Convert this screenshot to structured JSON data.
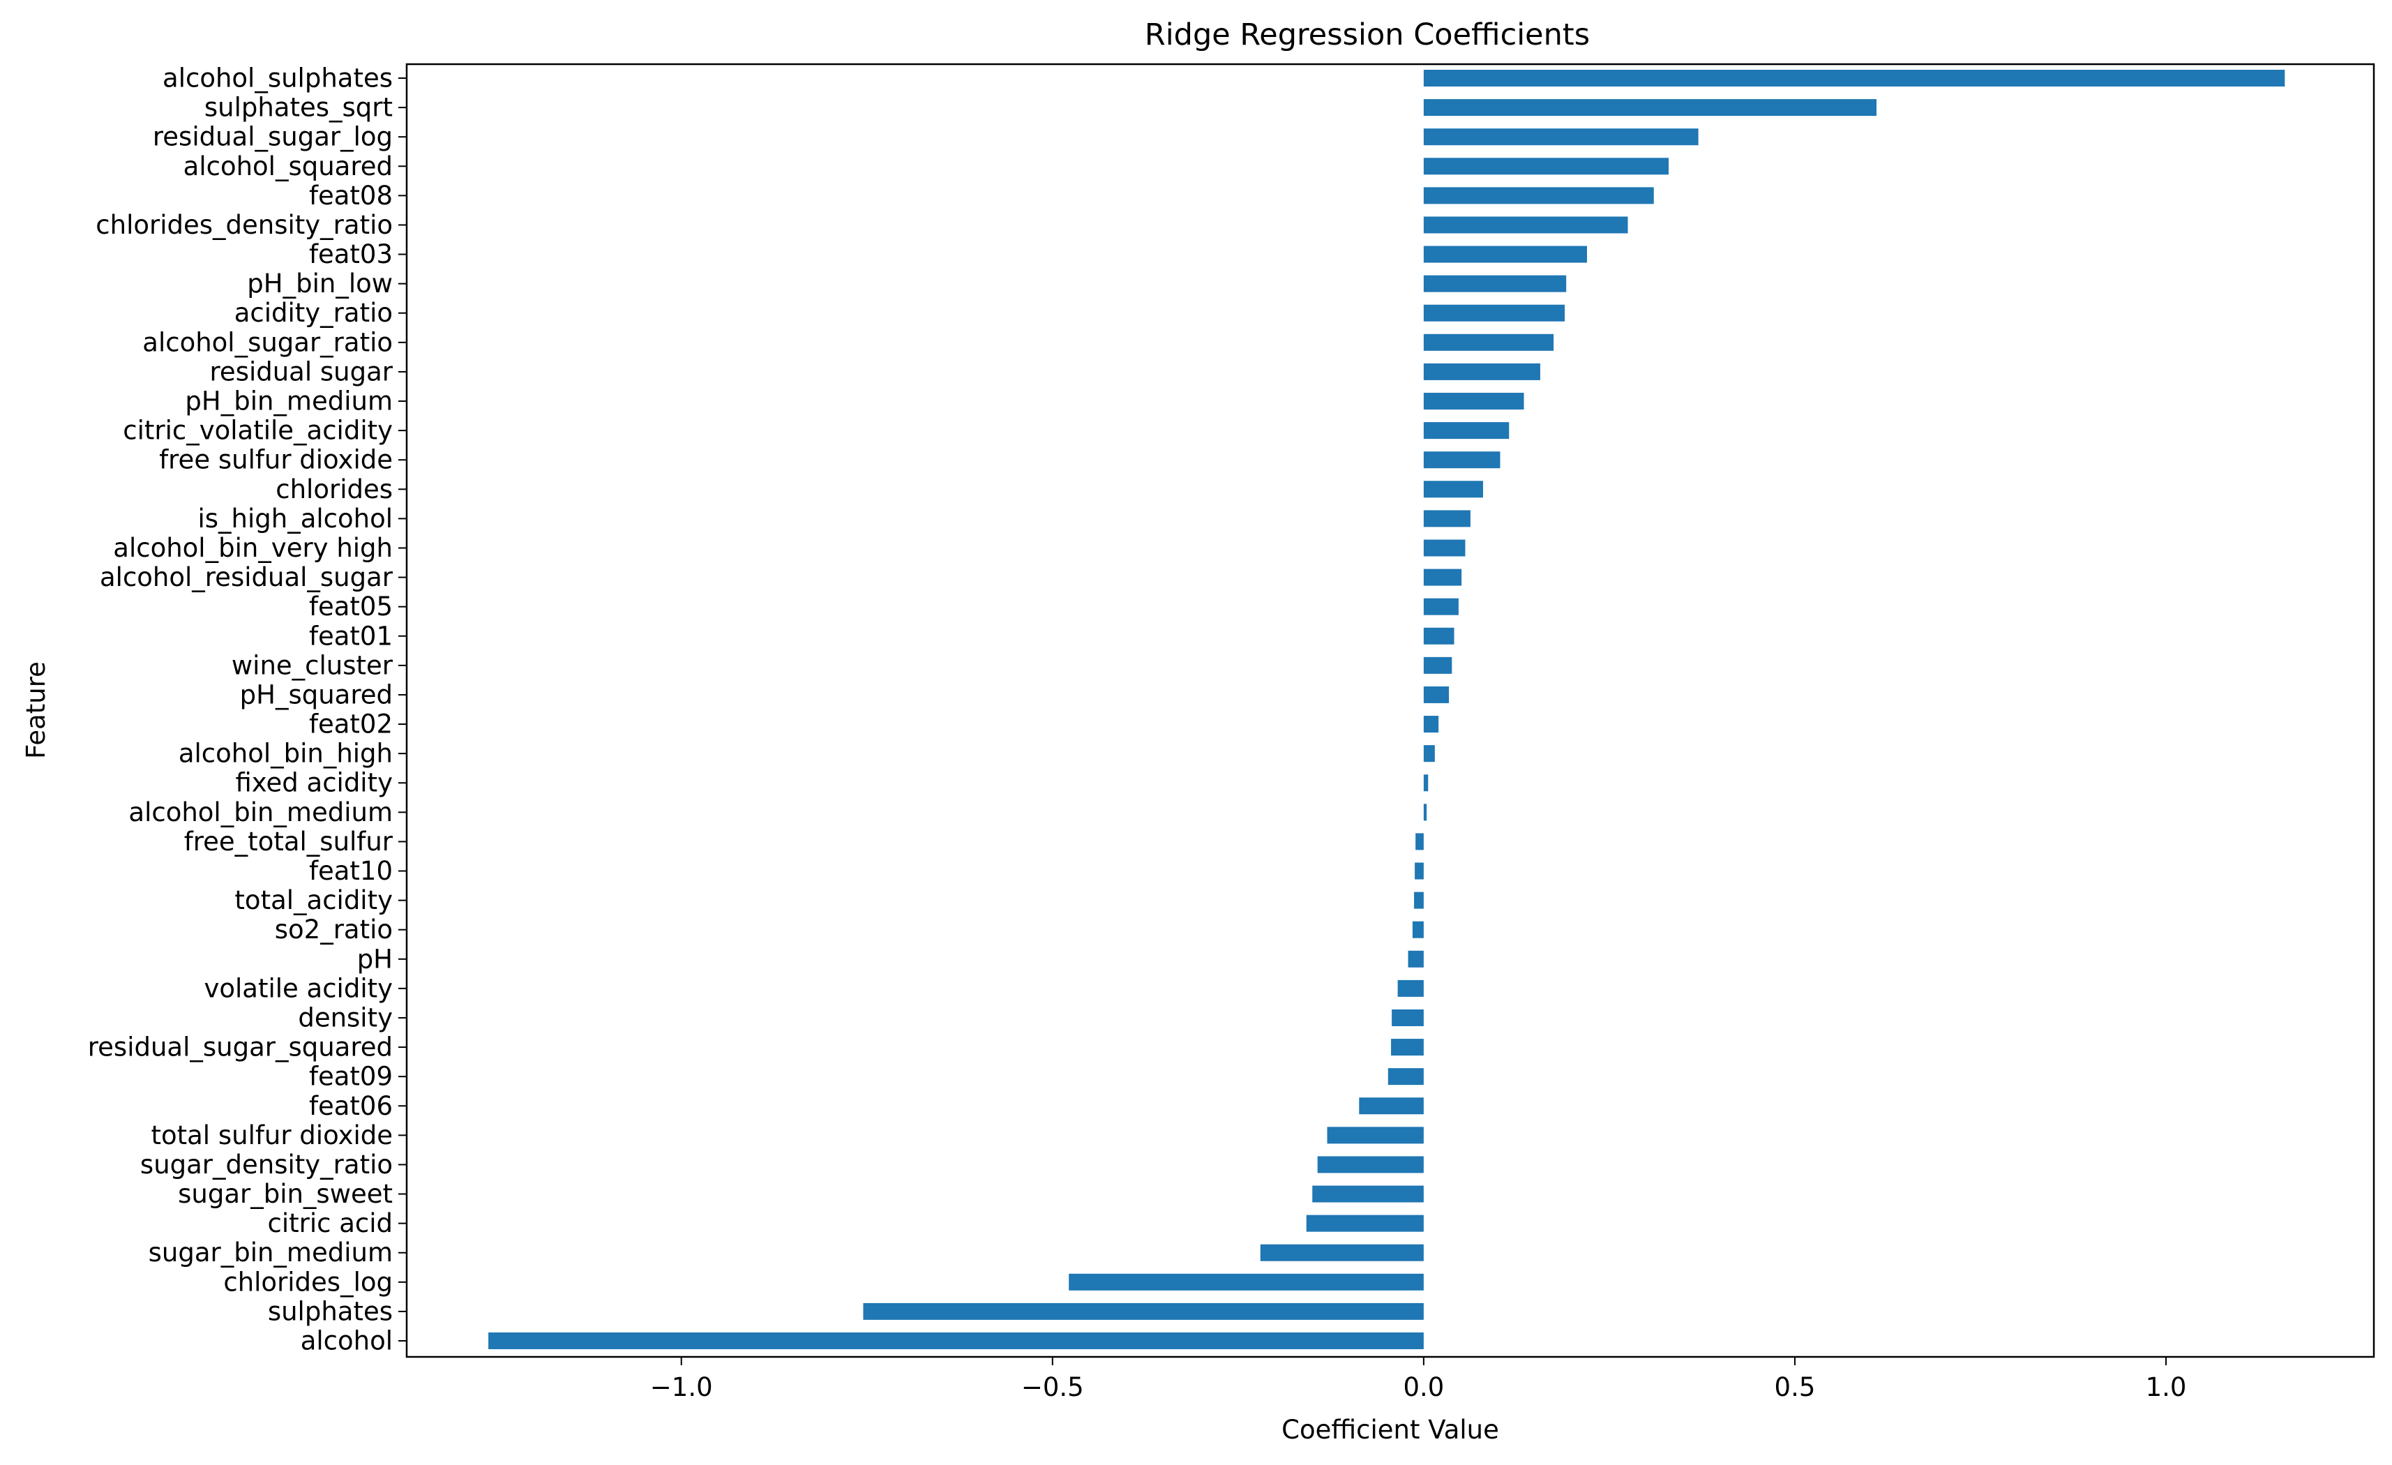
{
  "chart_data": {
    "type": "bar",
    "orientation": "horizontal",
    "title": "Ridge Regression Coefficients",
    "xlabel": "Coefficient Value",
    "ylabel": "Feature",
    "xlim": [
      -1.37,
      1.28
    ],
    "xticks": [
      -1.0,
      -0.5,
      0.0,
      0.5,
      1.0
    ],
    "xtick_labels": [
      "−1.0",
      "−0.5",
      "0.0",
      "0.5",
      "1.0"
    ],
    "bar_color": "#1f77b4",
    "grid": false,
    "categories": [
      "alcohol_sulphates",
      "sulphates_sqrt",
      "residual_sugar_log",
      "alcohol_squared",
      "feat08",
      "chlorides_density_ratio",
      "feat03",
      "pH_bin_low",
      "acidity_ratio",
      "alcohol_sugar_ratio",
      "residual sugar",
      "pH_bin_medium",
      "citric_volatile_acidity",
      "free sulfur dioxide",
      "chlorides",
      "is_high_alcohol",
      "alcohol_bin_very high",
      "alcohol_residual_sugar",
      "feat05",
      "feat01",
      "wine_cluster",
      "pH_squared",
      "feat02",
      "alcohol_bin_high",
      "fixed acidity",
      "alcohol_bin_medium",
      "free_total_sulfur",
      "feat10",
      "total_acidity",
      "so2_ratio",
      "pH",
      "volatile acidity",
      "density",
      "residual_sugar_squared",
      "feat09",
      "feat06",
      "total sulfur dioxide",
      "sugar_density_ratio",
      "sugar_bin_sweet",
      "citric acid",
      "sugar_bin_medium",
      "chlorides_log",
      "sulphates",
      "alcohol"
    ],
    "values": [
      1.16,
      0.61,
      0.37,
      0.33,
      0.31,
      0.275,
      0.22,
      0.192,
      0.19,
      0.175,
      0.157,
      0.135,
      0.115,
      0.103,
      0.08,
      0.063,
      0.056,
      0.051,
      0.047,
      0.041,
      0.038,
      0.034,
      0.02,
      0.015,
      0.006,
      0.004,
      -0.011,
      -0.012,
      -0.013,
      -0.015,
      -0.021,
      -0.035,
      -0.043,
      -0.044,
      -0.048,
      -0.087,
      -0.13,
      -0.143,
      -0.15,
      -0.158,
      -0.22,
      -0.478,
      -0.755,
      -1.26
    ]
  }
}
